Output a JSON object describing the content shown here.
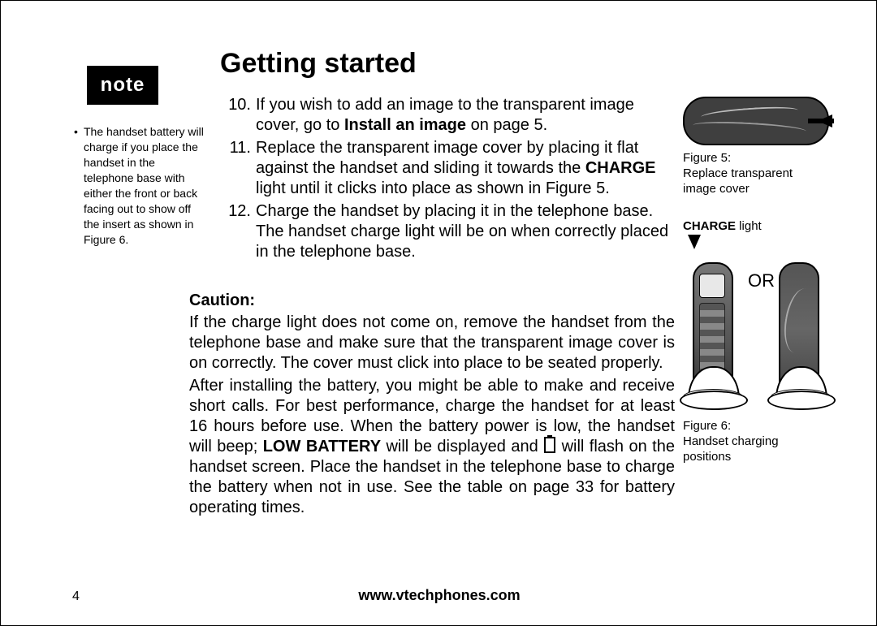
{
  "heading": "Getting started",
  "note": {
    "badge": "note",
    "bullet": "•",
    "text": "The handset battery will charge if you place the handset in the telephone base with either the front or back facing out to show off the insert as shown in Figure 6."
  },
  "list": {
    "items": [
      {
        "num": "10.",
        "before": "If you wish to add an image to the transparent image cover, go to ",
        "bold": "Install an image",
        "after": " on page 5."
      },
      {
        "num": "11.",
        "before": "Replace the transparent image cover by placing it flat against the handset and sliding it towards the ",
        "bold": "CHARGE",
        "after": " light until it clicks into place as shown in Figure 5."
      },
      {
        "num": "12.",
        "before": "Charge the handset by placing it in the telephone base. The handset charge light will be on when correctly placed in the telephone base.",
        "bold": "",
        "after": ""
      }
    ]
  },
  "caution": {
    "label": "Caution:",
    "p1": "If the charge light does not come on, remove the handset from the telephone base and make sure that the transparent image cover is on correctly. The cover must click into place to be seated properly.",
    "p2_a": "After installing the battery, you might be able to make and receive short calls. For best performance, charge the handset for at least 16 hours before use. When the battery power is low, the handset will beep; ",
    "p2_bold": "LOW BATTERY",
    "p2_b": " will be displayed and ",
    "p2_c": " will flash on the handset screen. Place the handset in the telephone base to charge the battery when not in use. See the table on page 33 for battery operating times."
  },
  "right": {
    "fig5_caption": "Figure 5:\nReplace transparent image cover",
    "charge_bold": "CHARGE",
    "charge_after": " light",
    "or_label": "OR",
    "fig6_caption": "Figure 6:\nHandset charging positions"
  },
  "footer": {
    "page": "4",
    "url": "www.vtechphones.com"
  }
}
